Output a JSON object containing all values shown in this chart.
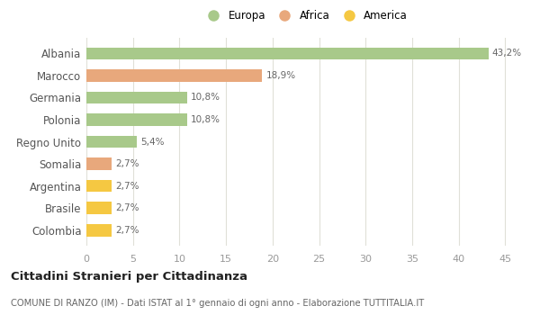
{
  "categories": [
    "Albania",
    "Marocco",
    "Germania",
    "Polonia",
    "Regno Unito",
    "Somalia",
    "Argentina",
    "Brasile",
    "Colombia"
  ],
  "values": [
    43.2,
    18.9,
    10.8,
    10.8,
    5.4,
    2.7,
    2.7,
    2.7,
    2.7
  ],
  "labels": [
    "43,2%",
    "18,9%",
    "10,8%",
    "10,8%",
    "5,4%",
    "2,7%",
    "2,7%",
    "2,7%",
    "2,7%"
  ],
  "colors": [
    "#a8c98a",
    "#e8a87c",
    "#a8c98a",
    "#a8c98a",
    "#a8c98a",
    "#e8a87c",
    "#f5c842",
    "#f5c842",
    "#f5c842"
  ],
  "legend_labels": [
    "Europa",
    "Africa",
    "America"
  ],
  "legend_colors": [
    "#a8c98a",
    "#e8a87c",
    "#f5c842"
  ],
  "title": "Cittadini Stranieri per Cittadinanza",
  "subtitle": "COMUNE DI RANZO (IM) - Dati ISTAT al 1° gennaio di ogni anno - Elaborazione TUTTITALIA.IT",
  "xlim": [
    0,
    47
  ],
  "xticks": [
    0,
    5,
    10,
    15,
    20,
    25,
    30,
    35,
    40,
    45
  ],
  "background_color": "#ffffff",
  "grid_color": "#e0e0d8"
}
